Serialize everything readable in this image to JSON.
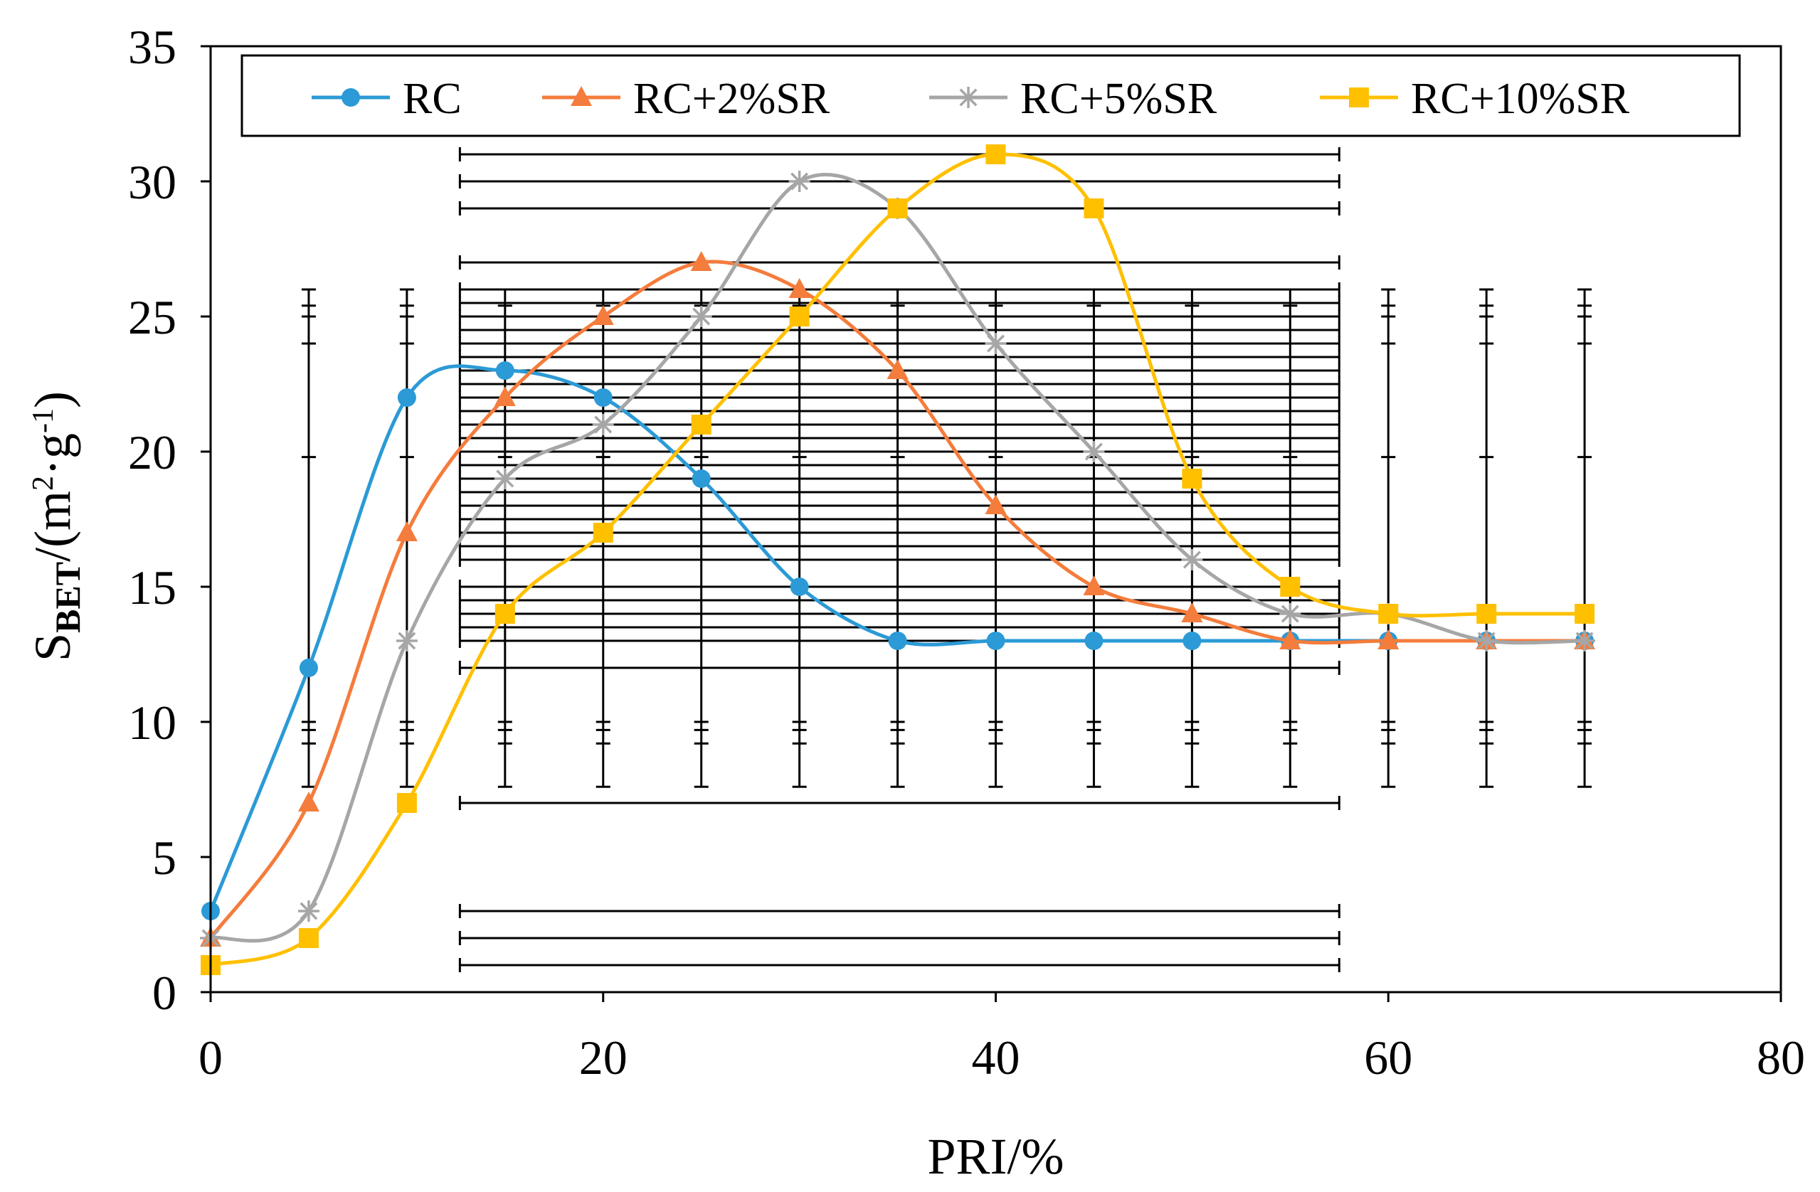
{
  "chart_data": {
    "type": "line",
    "title": "",
    "xlabel": "PRI/%",
    "ylabel": {
      "prefix": "S",
      "subscript": "BET",
      "unit_open": "/(m",
      "sup1": "2",
      "dot": "·g",
      "sup2": "-1",
      "unit_close": ")"
    },
    "xlim": [
      0,
      80
    ],
    "ylim": [
      0,
      35
    ],
    "xticks": [
      0,
      20,
      40,
      60,
      80
    ],
    "yticks": [
      0,
      5,
      10,
      15,
      20,
      25,
      30,
      35
    ],
    "legend_position": "top",
    "x": [
      0,
      5,
      10,
      15,
      20,
      25,
      30,
      35,
      40,
      45,
      50,
      55,
      60,
      65,
      70
    ],
    "series": [
      {
        "name": "RC",
        "color": "#2b9ad6",
        "marker": "circle",
        "values": [
          3,
          12,
          22,
          23,
          22,
          19,
          15,
          13,
          13,
          13,
          13,
          13,
          13,
          13,
          13
        ]
      },
      {
        "name": "RC+2%SR",
        "color": "#f47c3c",
        "marker": "triangle",
        "values": [
          2,
          7,
          17,
          22,
          25,
          27,
          26,
          23,
          18,
          15,
          14,
          13,
          13,
          13,
          13
        ]
      },
      {
        "name": "RC+5%SR",
        "color": "#a6a6a6",
        "marker": "star",
        "values": [
          2,
          3,
          13,
          19,
          21,
          25,
          30,
          29,
          24,
          20,
          16,
          14,
          14,
          13,
          13
        ]
      },
      {
        "name": "RC+10%SR",
        "color": "#ffc000",
        "marker": "square",
        "values": [
          1,
          2,
          7,
          14,
          17,
          21,
          25,
          29,
          31,
          29,
          19,
          15,
          14,
          14,
          14
        ]
      }
    ],
    "error_bars": {
      "vertical": {
        "x": [
          5,
          10,
          15,
          20,
          25,
          30,
          35,
          40,
          45,
          50,
          55,
          60,
          65,
          70
        ],
        "y_low": 7.6,
        "y_high": 26,
        "inner_ticks": [
          9.2,
          9.7,
          10.0,
          19.8,
          24.0,
          25.0,
          25.4
        ]
      },
      "horizontal": {
        "x_start": 12.7,
        "x_end": 57.5,
        "y": [
          1,
          2,
          3,
          7,
          12,
          13,
          13.5,
          14,
          14.5,
          15,
          16,
          16.5,
          17,
          17.5,
          18,
          18.5,
          19,
          19.5,
          20,
          20.5,
          21,
          21.5,
          22,
          22.5,
          23,
          23.5,
          24,
          24.5,
          25,
          25.5,
          26,
          27,
          29,
          30,
          31
        ]
      }
    }
  }
}
